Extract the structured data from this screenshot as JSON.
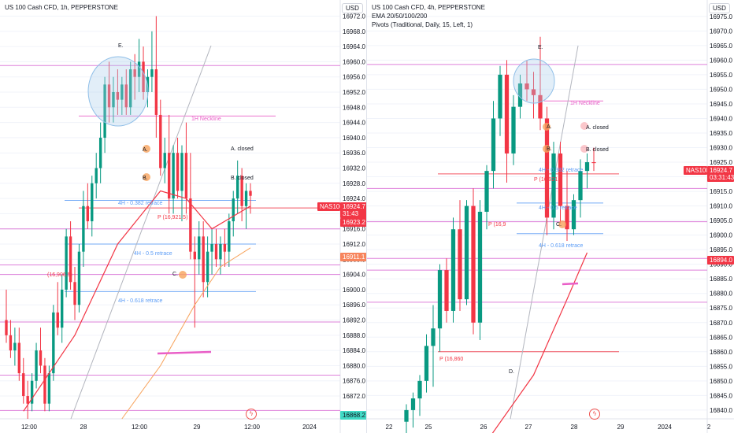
{
  "colors": {
    "up": "#089981",
    "down": "#f23645",
    "ema": "#f23645",
    "ema_slow": "#f7a35c",
    "pivot": "#d96ad4",
    "fib": "#5b9cf6",
    "neckline": "#e95ec7",
    "trend": "#b2b5be",
    "grid": "#f0f3fa",
    "axis_text": "#131722",
    "circle_fill": "rgba(173,205,235,0.35)",
    "circle_stroke": "#90bfe8",
    "point_marker": "#f7a35c"
  },
  "left": {
    "title": "US 100 Cash CFD, 1h, PEPPERSTONE",
    "currency": "USD",
    "price_ticks": [
      "16972.0",
      "16968.0",
      "16964.0",
      "16960.0",
      "16956.0",
      "16952.0",
      "16948.0",
      "16944.0",
      "16940.0",
      "16936.0",
      "16932.0",
      "16928.0",
      "16924.0",
      "16920.0",
      "16916.0",
      "16912.0",
      "16908.0",
      "16904.0",
      "16900.0",
      "16896.0",
      "16892.0",
      "16888.0",
      "16884.0",
      "16880.0",
      "16876.0",
      "16872.0"
    ],
    "time_ticks": [
      "12:00",
      "28",
      "12:00",
      "29",
      "12:00",
      "2024"
    ],
    "price_tag_label": "NAS100",
    "price_tag_value": "16924.7",
    "price_tag_timer": "31:43",
    "price_tag_2": "16923.2",
    "ema_tag": "16911.1",
    "bottom_tag": "16868.2",
    "annotations": {
      "e": "E.",
      "a": "A.",
      "b": "B.",
      "c": "C.",
      "a_closed": "A. closed",
      "b_closed": "B. closed",
      "neckline": "1H Neckline",
      "fib_382": "4H - 0.382 retrace",
      "fib_5": "4H - 0.5 retrace",
      "fib_618": "4H - 0.618 retrace",
      "pivot_p": "P (16,921.5)",
      "pivot_left": "(16,906.5)"
    },
    "chart_data": {
      "type": "candlestick",
      "ylim": [
        16866,
        16975
      ],
      "grid": true,
      "candles": [
        [
          16892,
          16900,
          16886,
          16888
        ],
        [
          16888,
          16892,
          16882,
          16884
        ],
        [
          16884,
          16890,
          16880,
          16886
        ],
        [
          16886,
          16890,
          16876,
          16878
        ],
        [
          16878,
          16882,
          16870,
          16872
        ],
        [
          16872,
          16876,
          16866,
          16870
        ],
        [
          16870,
          16878,
          16868,
          16876
        ],
        [
          16876,
          16886,
          16874,
          16884
        ],
        [
          16884,
          16890,
          16878,
          16880
        ],
        [
          16880,
          16882,
          16868,
          16870
        ],
        [
          16870,
          16880,
          16868,
          16878
        ],
        [
          16878,
          16896,
          16876,
          16894
        ],
        [
          16894,
          16902,
          16888,
          16890
        ],
        [
          16890,
          16904,
          16886,
          16900
        ],
        [
          16900,
          16916,
          16898,
          16914
        ],
        [
          16914,
          16918,
          16900,
          16902
        ],
        [
          16902,
          16906,
          16892,
          16896
        ],
        [
          16896,
          16912,
          16894,
          16910
        ],
        [
          16910,
          16926,
          16906,
          16922
        ],
        [
          16922,
          16928,
          16916,
          16918
        ],
        [
          16918,
          16930,
          16914,
          16928
        ],
        [
          16928,
          16936,
          16924,
          16932
        ],
        [
          16932,
          16944,
          16928,
          16940
        ],
        [
          16940,
          16956,
          16936,
          16954
        ],
        [
          16954,
          16960,
          16944,
          16948
        ],
        [
          16948,
          16956,
          16944,
          16952
        ],
        [
          16952,
          16958,
          16946,
          16950
        ],
        [
          16950,
          16956,
          16946,
          16954
        ],
        [
          16954,
          16958,
          16946,
          16948
        ],
        [
          16948,
          16960,
          16946,
          16958
        ],
        [
          16958,
          16962,
          16950,
          16956
        ],
        [
          16956,
          16966,
          16952,
          16960
        ],
        [
          16960,
          16964,
          16950,
          16952
        ],
        [
          16952,
          16958,
          16948,
          16956
        ],
        [
          16956,
          16968,
          16952,
          16958
        ],
        [
          16958,
          16972,
          16940,
          16946
        ],
        [
          16946,
          16950,
          16930,
          16932
        ],
        [
          16932,
          16940,
          16928,
          16936
        ],
        [
          16936,
          16946,
          16920,
          16924
        ],
        [
          16924,
          16938,
          16920,
          16936
        ],
        [
          16936,
          16940,
          16924,
          16926
        ],
        [
          16926,
          16938,
          16918,
          16936
        ],
        [
          16936,
          16944,
          16920,
          16924
        ],
        [
          16924,
          16936,
          16908,
          16910
        ],
        [
          16910,
          16914,
          16890,
          16908
        ],
        [
          16908,
          16918,
          16904,
          16914
        ],
        [
          16914,
          16918,
          16898,
          16902
        ],
        [
          16902,
          16914,
          16898,
          16910
        ],
        [
          16910,
          16916,
          16904,
          16912
        ],
        [
          16912,
          16916,
          16906,
          16908
        ],
        [
          16908,
          16914,
          16904,
          16912
        ],
        [
          16912,
          16916,
          16906,
          16910
        ],
        [
          16910,
          16920,
          16906,
          16918
        ],
        [
          16918,
          16926,
          16914,
          16924
        ],
        [
          16924,
          16934,
          16920,
          16930
        ],
        [
          16930,
          16932,
          16918,
          16922
        ],
        [
          16922,
          16928,
          16916,
          16926
        ],
        [
          16926,
          16928,
          16920,
          16924.7
        ]
      ],
      "ema_fast": [
        [
          4,
          16868
        ],
        [
          16,
          16888
        ],
        [
          26,
          16912
        ],
        [
          36,
          16926
        ],
        [
          42,
          16924
        ],
        [
          48,
          16916
        ],
        [
          54,
          16920
        ],
        [
          57,
          16922
        ]
      ],
      "ema_slow": [
        [
          27,
          16866
        ],
        [
          36,
          16880
        ],
        [
          44,
          16896
        ],
        [
          50,
          16906
        ],
        [
          57,
          16911
        ]
      ],
      "levels": [
        {
          "price": 16959.0,
          "kind": "pivot"
        },
        {
          "price": 16945.7,
          "kind": "neckline"
        },
        {
          "price": 16923.5,
          "kind": "fib"
        },
        {
          "price": 16912.0,
          "kind": "fib"
        },
        {
          "price": 16899.5,
          "kind": "fib"
        },
        {
          "price": 16921.5,
          "kind": "pivot_p"
        },
        {
          "price": 16906.5,
          "kind": "pivot"
        },
        {
          "price": 16904.0,
          "kind": "pivot"
        },
        {
          "price": 16916.0,
          "kind": "pivot"
        },
        {
          "price": 16891.5,
          "kind": "pivot"
        },
        {
          "price": 16877.5,
          "kind": "pivot"
        },
        {
          "price": 16868.2,
          "kind": "pivot"
        }
      ]
    }
  },
  "right": {
    "title": "US 100 Cash CFD, 4h, PEPPERSTONE",
    "subtitle_1": "EMA 20/50/100/200",
    "subtitle_2": "Pivots (Traditional, Daily, 15, Left, 1)",
    "currency": "USD",
    "price_ticks": [
      "16975.0",
      "16970.0",
      "16965.0",
      "16960.0",
      "16955.0",
      "16950.0",
      "16945.0",
      "16940.0",
      "16935.0",
      "16930.0",
      "16925.0",
      "16920.0",
      "16915.0",
      "16910.0",
      "16905.0",
      "16900.0",
      "16895.0",
      "16890.0",
      "16885.0",
      "16880.0",
      "16875.0",
      "16870.0",
      "16865.0",
      "16860.0",
      "16855.0",
      "16850.0",
      "16845.0",
      "16840.0"
    ],
    "time_ticks": [
      "22",
      "25",
      "26",
      "27",
      "28",
      "29",
      "2024",
      "2"
    ],
    "price_tag_label": "NAS100",
    "price_tag_value": "16924.7",
    "price_tag_timer": "03:31:43",
    "ema_tag": "16894.0",
    "annotations": {
      "e": "E.",
      "a": "A.",
      "b": "B.",
      "c": "C.",
      "d": "D.",
      "a_closed": "A. closed",
      "b_closed": "B. closed",
      "neckline": "1H Neckline",
      "fib_382": "4H - 0.382 retrace",
      "fib_5": "4H - 0.5 retrace",
      "fib_618": "4H - 0.618 retrace",
      "pivot_p": "P (16,921.",
      "pivot_p2": "P (16,9",
      "pivot_p3": "P (16,860"
    },
    "chart_data": {
      "type": "candlestick",
      "ylim": [
        16837,
        16979
      ],
      "grid": true,
      "candles": [
        [
          16836,
          16842,
          16832,
          16840
        ],
        [
          16840,
          16846,
          16834,
          16844
        ],
        [
          16844,
          16852,
          16838,
          16850
        ],
        [
          16850,
          16866,
          16846,
          16862
        ],
        [
          16862,
          16876,
          16848,
          16868
        ],
        [
          16868,
          16890,
          16860,
          16888
        ],
        [
          16888,
          16892,
          16870,
          16874
        ],
        [
          16874,
          16906,
          16870,
          16902
        ],
        [
          16902,
          16912,
          16874,
          16878
        ],
        [
          16878,
          16912,
          16876,
          16910
        ],
        [
          16910,
          16916,
          16866,
          16870
        ],
        [
          16870,
          16912,
          16864,
          16908
        ],
        [
          16908,
          16924,
          16902,
          16922
        ],
        [
          16922,
          16946,
          16916,
          16940
        ],
        [
          16940,
          16958,
          16934,
          16955
        ],
        [
          16955,
          16960,
          16918,
          16928
        ],
        [
          16928,
          16948,
          16924,
          16944
        ],
        [
          16944,
          16955,
          16940,
          16952
        ],
        [
          16952,
          16960,
          16946,
          16950
        ],
        [
          16950,
          16956,
          16940,
          16948
        ],
        [
          16948,
          16968,
          16936,
          16940
        ],
        [
          16940,
          16944,
          16900,
          16906
        ],
        [
          16906,
          16932,
          16902,
          16928
        ],
        [
          16928,
          16932,
          16904,
          16910
        ],
        [
          16910,
          16922,
          16898,
          16902
        ],
        [
          16902,
          16914,
          16900,
          16912
        ],
        [
          16912,
          16926,
          16906,
          16922
        ],
        [
          16922,
          16928,
          16916,
          16925
        ],
        [
          16925,
          16930,
          16922,
          16924.7
        ]
      ],
      "ema_fast": [
        [
          11,
          16826
        ],
        [
          19,
          16852
        ],
        [
          24,
          16878
        ],
        [
          27,
          16894
        ]
      ],
      "levels": [
        {
          "price": 16958.5,
          "kind": "pivot"
        },
        {
          "price": 16946.0,
          "kind": "neckline"
        },
        {
          "price": 16921.0,
          "kind": "pivot_p"
        },
        {
          "price": 16916.0,
          "kind": "pivot"
        },
        {
          "price": 16911.0,
          "kind": "fib"
        },
        {
          "price": 16904.6,
          "kind": "pivot"
        },
        {
          "price": 16900.5,
          "kind": "fib"
        },
        {
          "price": 16892.0,
          "kind": "pivot"
        },
        {
          "price": 16888.0,
          "kind": "pivot"
        },
        {
          "price": 16877.0,
          "kind": "pivot"
        },
        {
          "price": 16860.0,
          "kind": "pivot_p"
        }
      ]
    }
  }
}
